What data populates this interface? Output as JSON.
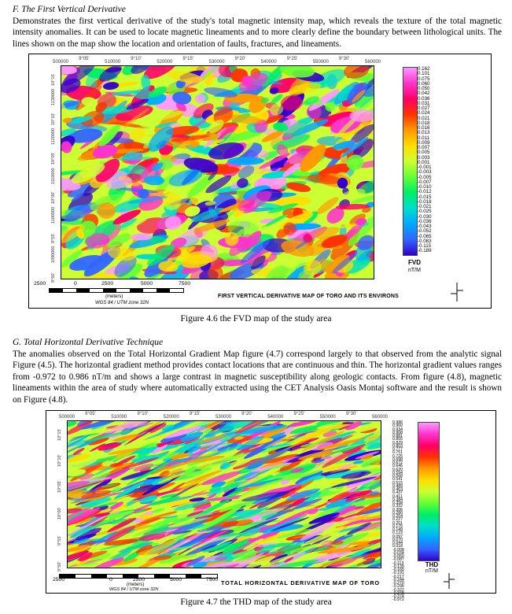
{
  "section_f": {
    "heading": "F.   The First Vertical Derivative",
    "body": "Demonstrates the first vertical derivative of the study's total magnetic intensity map, which reveals the texture of the total magnetic intensity anomalies. It can be used to locate magnetic lineaments and to more clearly define the boundary between lithological units. The lines shown on the map show the location and orientation of faults, fractures, and lineaments."
  },
  "figure1": {
    "caption": "Figure 4.6 the FVD map of the study area",
    "top_ticks": [
      "500000",
      "9°05'",
      "510000",
      "9°10'",
      "520000",
      "9°15'",
      "530000",
      "9°20'",
      "540000",
      "9°25'",
      "550000",
      "9°30'",
      "560000"
    ],
    "left_ticks": [
      "10°15'",
      "1130000",
      "10°10'",
      "1120000",
      "10°05'",
      "1110000",
      "10°00'",
      "1100000",
      "9°55'",
      "1090000",
      "9°50'"
    ],
    "legend_values": [
      "0.162",
      "0.101",
      "0.075",
      "0.060",
      "0.050",
      "0.042",
      "0.036",
      "0.031",
      "0.027",
      "0.024",
      "0.021",
      "0.018",
      "0.016",
      "0.013",
      "0.011",
      "0.009",
      "0.007",
      "0.005",
      "0.003",
      "0.001",
      "-0.001",
      "-0.003",
      "-0.005",
      "-0.007",
      "-0.010",
      "-0.012",
      "-0.015",
      "-0.018",
      "-0.021",
      "-0.025",
      "-0.030",
      "-0.036",
      "-0.043",
      "-0.052",
      "-0.065",
      "-0.083",
      "-0.115",
      "-0.189"
    ],
    "legend_title": "FVD",
    "legend_unit": "nT/M",
    "map_title": "FIRST VERTICAL DERIVATIVE MAP OF TORO AND ITS ENVIRONS",
    "scale_labels": [
      "2500",
      "0",
      "2500",
      "5000",
      "7500"
    ],
    "scale_unit": "(meters)",
    "projection": "WGS 84 / UTM zone 32N"
  },
  "section_g": {
    "heading": "G.   Total Horizontal Derivative Technique",
    "body": "The anomalies observed on the Total Horizontal Gradient Map figure (4.7) correspond largely to that observed from the analytic signal Figure (4.5). The horizontal gradient method provides contact locations that are continuous and thin. The horizontal gradient values ranges from -0.972 to 0.986 nT/m and shows a large contrast in magnetic susceptibility along geologic contacts. From figure (4.8), magnetic lineaments within the area of study where automatically extracted using the CET Analysis Oasis Montaj software and the result is shown on Figure (4.8)."
  },
  "figure2": {
    "caption": "Figure 4.7 the THD map of the study area",
    "top_ticks": [
      "500000",
      "9°05'",
      "510000",
      "9°10'",
      "520000",
      "9°15'",
      "530000",
      "9°20'",
      "540000",
      "9°25'",
      "550000",
      "9°30'",
      "560000"
    ],
    "left_ticks": [
      "10°15'",
      "10°10'",
      "10°05'",
      "10°00'",
      "9°55'",
      "9°50'"
    ],
    "legend_values": [
      "0.986",
      "0.960",
      "0.934",
      "0.908",
      "0.881",
      "0.855",
      "0.829",
      "0.803",
      "0.777",
      "0.751",
      "0.725",
      "0.698",
      "0.672",
      "0.646",
      "0.620",
      "0.594",
      "0.568",
      "0.541",
      "0.515",
      "0.489",
      "0.463",
      "0.437",
      "0.411",
      "0.384",
      "0.358",
      "0.332",
      "0.306",
      "0.280",
      "0.254",
      "0.227",
      "0.201",
      "0.175",
      "0.149",
      "0.123",
      "0.097",
      "0.070",
      "0.044",
      "0.018",
      "-0.008",
      "-0.034",
      "-0.060",
      "-0.087",
      "-0.113",
      "-0.139",
      "-0.165",
      "-0.191",
      "-0.217",
      "-0.244",
      "-0.270",
      "-0.296",
      "-0.322",
      "-0.348",
      "-0.374",
      "-0.972"
    ],
    "legend_title": "THD",
    "legend_unit": "nT/M",
    "map_title": "TOTAL HORIZONTAL DERIVATIVE MAP OF TORO",
    "scale_labels": [
      "2500",
      "0",
      "2500",
      "5000",
      "7500"
    ],
    "scale_unit": "(meters)",
    "projection": "WGS 84 / UTM zone 32N"
  },
  "colors": {
    "ramp": [
      "#ff99ff",
      "#ff33cc",
      "#ff0066",
      "#ff3300",
      "#ff9900",
      "#ffdd00",
      "#ccff33",
      "#66ff33",
      "#00ee66",
      "#00ddcc",
      "#00aaff",
      "#3366ff",
      "#3300cc"
    ]
  }
}
